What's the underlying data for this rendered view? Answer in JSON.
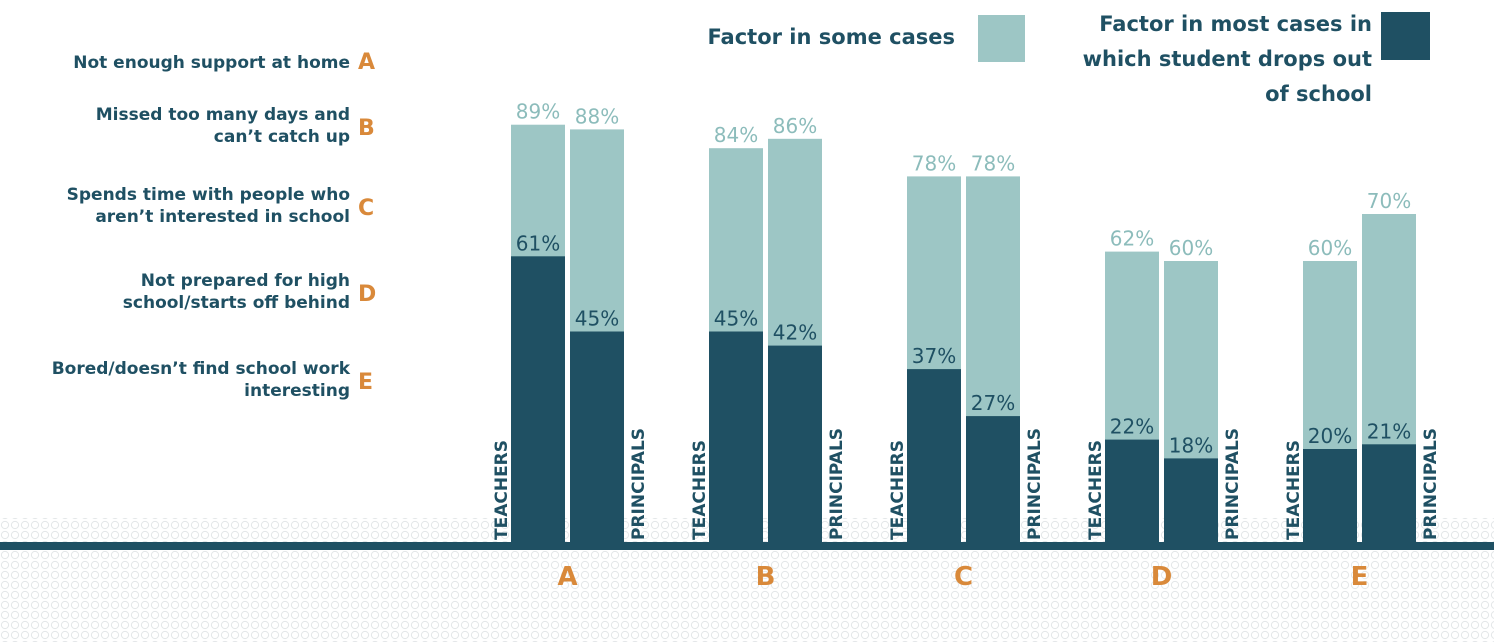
{
  "chart_data": {
    "type": "bar",
    "categories": [
      "A",
      "B",
      "C",
      "D",
      "E"
    ],
    "key": [
      "Not enough support at home",
      "Missed too many days and can’t catch up",
      "Spends time with people who aren’t interested in school",
      "Not prepared for high school/starts off behind",
      "Bored/doesn’t find school work interesting"
    ],
    "series": [
      {
        "name": "Factor in some cases",
        "color": "#9dc6c5"
      },
      {
        "name": "Factor in most cases in which student drops out of school",
        "color": "#1f5063"
      }
    ],
    "subgroups": [
      {
        "label": "TEACHERS",
        "some": [
          89,
          84,
          78,
          62,
          60
        ],
        "some_labels": [
          "89%",
          "84%",
          "78%",
          "62%",
          "60%"
        ],
        "most": [
          61,
          45,
          37,
          22,
          20
        ],
        "most_labels": [
          "61%",
          "45%",
          "37%",
          "22%",
          "20%"
        ]
      },
      {
        "label": "PRINCIPALS",
        "some": [
          88,
          86,
          78,
          60,
          70
        ],
        "some_labels": [
          "88%",
          "86%",
          "78%",
          "60%",
          "70%"
        ],
        "most": [
          45,
          42,
          27,
          18,
          21
        ],
        "most_labels": [
          "45%",
          "42%",
          "27%",
          "18%",
          "21%"
        ]
      }
    ],
    "ylim": [
      0,
      100
    ]
  }
}
